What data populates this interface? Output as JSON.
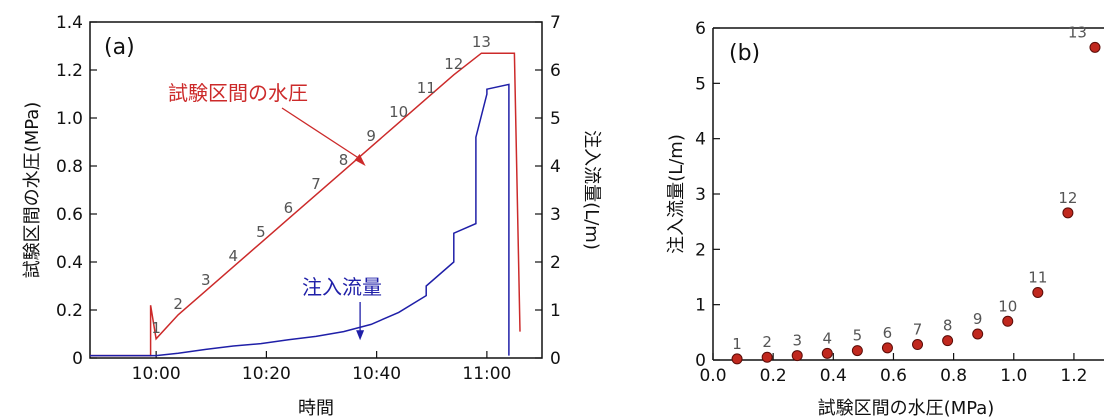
{
  "colors": {
    "pressure": "#cc2a2a",
    "flow": "#1f1fa8",
    "point_fill": "#c0281e",
    "point_stroke": "#5a0c08",
    "label": "#555555"
  },
  "chart_data": [
    {
      "type": "line",
      "panel_label": "(a)",
      "xlabel": "時間",
      "ylabel": "試験区間の水圧(MPa)",
      "y2label": "注入流量(L/m)",
      "xlim": [
        "09:48",
        "11:10"
      ],
      "xticks": [
        "10:00",
        "10:20",
        "10:40",
        "11:00"
      ],
      "ylim": [
        0,
        1.4
      ],
      "yticks": [
        "0",
        "0.2",
        "0.4",
        "0.6",
        "0.8",
        "1.0",
        "1.2",
        "1.4"
      ],
      "y2lim": [
        0,
        7
      ],
      "y2ticks": [
        "0",
        "1",
        "2",
        "3",
        "4",
        "5",
        "6",
        "7"
      ],
      "annotations": [
        {
          "text": "試験区間の水圧",
          "series": "pressure",
          "target": {
            "x": "10:38",
            "y": 0.8
          }
        },
        {
          "text": "注入流量",
          "series": "flow",
          "target": {
            "x": "10:37",
            "y": 0.35
          }
        }
      ],
      "step_labels": [
        "1",
        "2",
        "3",
        "4",
        "5",
        "6",
        "7",
        "8",
        "9",
        "10",
        "11",
        "12",
        "13"
      ],
      "series": [
        {
          "axis": "left",
          "x": [
            "09:48",
            "09:59",
            "09:59",
            "10:00",
            "10:00",
            "10:04",
            "10:04",
            "10:09",
            "10:09",
            "10:14",
            "10:14",
            "10:19",
            "10:19",
            "10:24",
            "10:24",
            "10:29",
            "10:29",
            "10:34",
            "10:34",
            "10:39",
            "10:39",
            "10:44",
            "10:44",
            "10:49",
            "10:49",
            "10:54",
            "10:54",
            "10:59",
            "10:59",
            "11:05",
            "11:05",
            "11:06"
          ],
          "y": [
            0.01,
            0.01,
            0.22,
            0.08,
            0.08,
            0.18,
            0.18,
            0.28,
            0.28,
            0.38,
            0.38,
            0.48,
            0.48,
            0.58,
            0.58,
            0.68,
            0.68,
            0.78,
            0.78,
            0.88,
            0.88,
            0.98,
            0.98,
            1.08,
            1.08,
            1.18,
            1.18,
            1.27,
            1.27,
            1.27,
            1.27,
            0.11
          ]
        },
        {
          "axis": "right",
          "x": [
            "09:48",
            "10:00",
            "10:04",
            "10:09",
            "10:14",
            "10:19",
            "10:24",
            "10:29",
            "10:34",
            "10:39",
            "10:44",
            "10:49",
            "10:49",
            "10:54",
            "10:54",
            "10:58",
            "10:58",
            "11:00",
            "11:00",
            "11:04",
            "11:04"
          ],
          "y": [
            0.05,
            0.05,
            0.1,
            0.18,
            0.25,
            0.3,
            0.38,
            0.45,
            0.55,
            0.7,
            0.95,
            1.3,
            1.5,
            2.0,
            2.6,
            2.8,
            4.6,
            5.5,
            5.6,
            5.7,
            0.05
          ]
        }
      ]
    },
    {
      "type": "scatter",
      "panel_label": "(b)",
      "xlabel": "試験区間の水圧(MPa)",
      "ylabel": "注入流量(L/m)",
      "xlim": [
        0,
        1.3
      ],
      "xticks": [
        "0.0",
        "0.2",
        "0.4",
        "0.6",
        "0.8",
        "1.0",
        "1.2"
      ],
      "ylim": [
        0,
        6
      ],
      "yticks": [
        "0",
        "1",
        "2",
        "3",
        "4",
        "5",
        "6"
      ],
      "x": [
        0.08,
        0.18,
        0.28,
        0.38,
        0.48,
        0.58,
        0.68,
        0.78,
        0.88,
        0.98,
        1.08,
        1.18,
        1.27
      ],
      "y": [
        0.02,
        0.05,
        0.08,
        0.12,
        0.17,
        0.22,
        0.28,
        0.35,
        0.47,
        0.7,
        1.22,
        2.66,
        5.65
      ],
      "point_labels": [
        "1",
        "2",
        "3",
        "4",
        "5",
        "6",
        "7",
        "8",
        "9",
        "10",
        "11",
        "12",
        "13"
      ]
    }
  ]
}
